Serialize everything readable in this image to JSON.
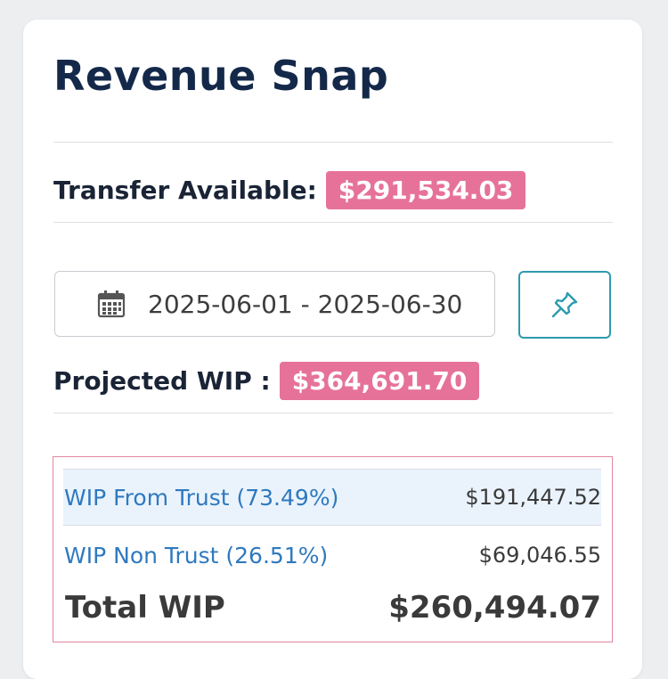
{
  "card": {
    "title": "Revenue Snap"
  },
  "transfer": {
    "label": "Transfer Available:",
    "amount": "$291,534.03"
  },
  "date_range": {
    "value": "2025-06-01 - 2025-06-30",
    "icon": "calendar-icon"
  },
  "pin_button": {
    "icon": "pin-icon"
  },
  "projected_wip": {
    "label": "Projected WIP :",
    "amount": "$364,691.70"
  },
  "wip_breakdown": {
    "rows": [
      {
        "label": "WIP From Trust (73.49%)",
        "amount": "$191,447.52"
      },
      {
        "label": "WIP Non Trust (26.51%)",
        "amount": "$69,046.55"
      }
    ],
    "total": {
      "label": "Total WIP",
      "amount": "$260,494.07"
    }
  },
  "colors": {
    "badge": "#e6729a",
    "title": "#14294a",
    "link": "#2f79bf",
    "accent_button": "#2d9aaf",
    "highlight_row": "#eaf3fc"
  }
}
